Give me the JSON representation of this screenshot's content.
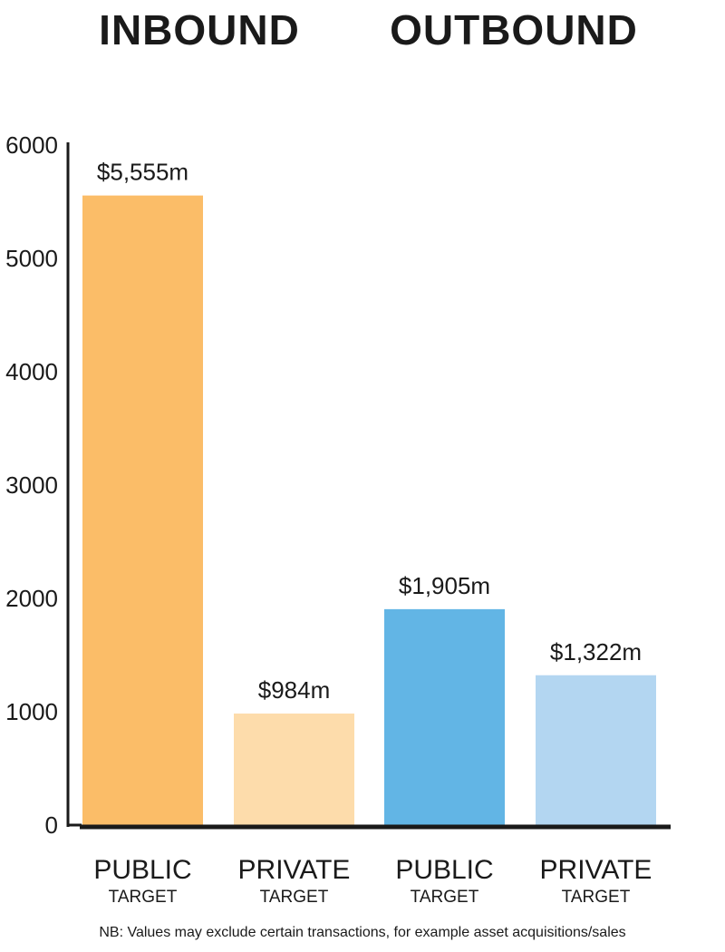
{
  "titles": {
    "inbound": "INBOUND",
    "outbound": "OUTBOUND"
  },
  "chart_data": {
    "type": "bar",
    "categories": [
      {
        "main": "PUBLIC",
        "sub": "TARGET",
        "group": "INBOUND"
      },
      {
        "main": "PRIVATE",
        "sub": "TARGET",
        "group": "INBOUND"
      },
      {
        "main": "PUBLIC",
        "sub": "TARGET",
        "group": "OUTBOUND"
      },
      {
        "main": "PRIVATE",
        "sub": "TARGET",
        "group": "OUTBOUND"
      }
    ],
    "values": [
      5555,
      984,
      1905,
      1322
    ],
    "data_labels": [
      "$5,555m",
      "$984m",
      "$1,905m",
      "$1,322m"
    ],
    "colors": [
      "#fbbd68",
      "#fddcab",
      "#62b5e5",
      "#b3d6f1"
    ],
    "ylim": [
      0,
      6000
    ],
    "yticks": [
      0,
      1000,
      2000,
      3000,
      4000,
      5000,
      6000
    ],
    "grid": false,
    "xlabel": "",
    "ylabel": ""
  },
  "note": "NB: Values may exclude certain transactions, for example asset acquisitions/sales"
}
